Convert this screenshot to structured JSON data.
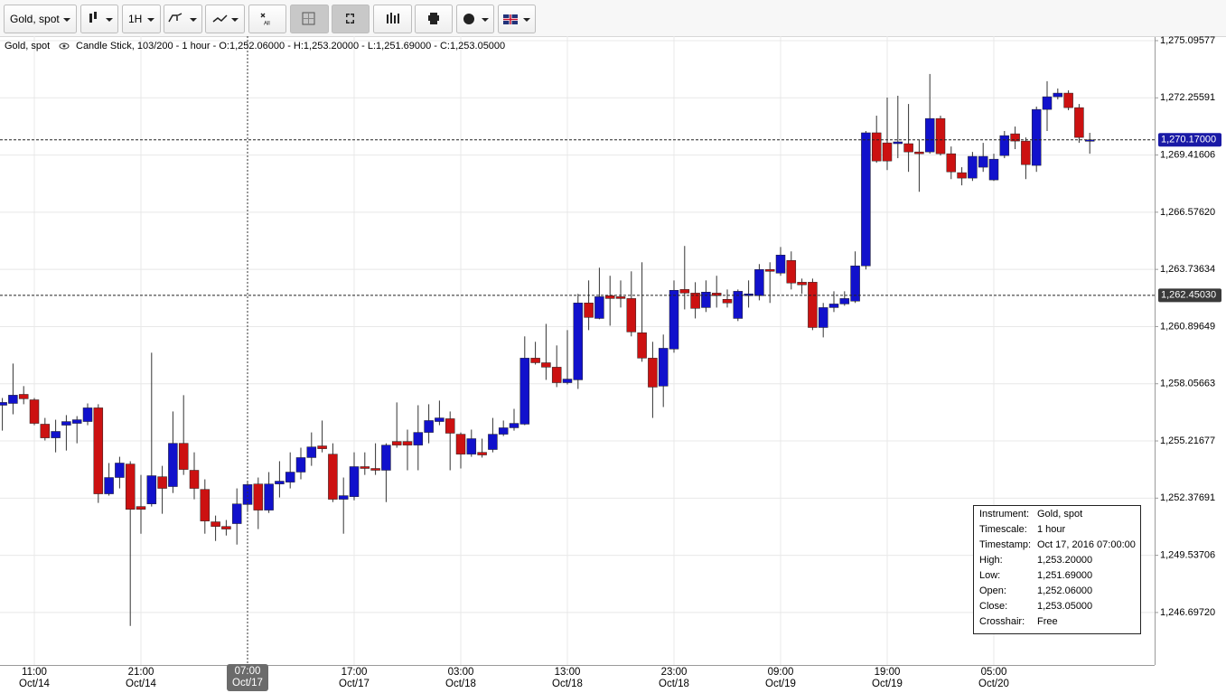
{
  "toolbar": {
    "symbol": "Gold, spot",
    "timeframe": "1H",
    "all": "All"
  },
  "header": {
    "symbol": "Gold, spot",
    "description": "Candle Stick, 103/200 - 1 hour - O:1,252.06000 - H:1,253.20000 - L:1,251.69000 - C:1,253.05000"
  },
  "info_box": {
    "rows": [
      [
        "Instrument:",
        "Gold, spot"
      ],
      [
        "Timescale:",
        "1 hour"
      ],
      [
        "Timestamp:",
        "Oct 17, 2016 07:00:00"
      ],
      [
        "High:",
        "1,253.20000"
      ],
      [
        "Low:",
        "1,251.69000"
      ],
      [
        "Open:",
        "1,252.06000"
      ],
      [
        "Close:",
        "1,253.05000"
      ],
      [
        "Crosshair:",
        "Free"
      ]
    ]
  },
  "chart_data": {
    "type": "candlestick",
    "up_color": "#1111cc",
    "down_color": "#cc1111",
    "wick_color": "#333333",
    "grid": true,
    "crosshair_index": 23,
    "categories": [
      null,
      null,
      null,
      "11:00\nOct/14",
      null,
      null,
      null,
      null,
      null,
      null,
      null,
      null,
      null,
      "21:00\nOct/14",
      null,
      null,
      null,
      null,
      null,
      null,
      null,
      null,
      null,
      "07:00\nOct/17",
      null,
      null,
      null,
      null,
      null,
      null,
      null,
      null,
      null,
      "17:00\nOct/17",
      null,
      null,
      null,
      null,
      null,
      null,
      null,
      null,
      null,
      "03:00\nOct/18",
      null,
      null,
      null,
      null,
      null,
      null,
      null,
      null,
      null,
      "13:00\nOct/18",
      null,
      null,
      null,
      null,
      null,
      null,
      null,
      null,
      null,
      "23:00\nOct/18",
      null,
      null,
      null,
      null,
      null,
      null,
      null,
      null,
      null,
      "09:00\nOct/19",
      null,
      null,
      null,
      null,
      null,
      null,
      null,
      null,
      null,
      "19:00\nOct/19",
      null,
      null,
      null,
      null,
      null,
      null,
      null,
      null,
      null,
      "05:00\nOct/20",
      null,
      null,
      null,
      null,
      null,
      null,
      null,
      null,
      null
    ],
    "open": [
      1256.99,
      1257.08,
      1257.53,
      1257.26,
      1256.05,
      1255.37,
      1256.0,
      1256.09,
      1256.18,
      1256.86,
      1252.59,
      1253.4,
      1254.07,
      1251.96,
      1252.09,
      1253.44,
      1252.95,
      1255.1,
      1253.76,
      1252.81,
      1251.2,
      1250.97,
      1251.11,
      1252.06,
      1253.08,
      1251.78,
      1253.08,
      1253.17,
      1253.67,
      1254.39,
      1254.97,
      1254.56,
      1252.32,
      1252.45,
      1253.94,
      1253.85,
      1253.76,
      1255.19,
      1255.19,
      1255.01,
      1255.64,
      1256.18,
      1256.32,
      1255.55,
      1254.56,
      1254.65,
      1254.79,
      1255.55,
      1255.87,
      1256.05,
      1259.33,
      1259.1,
      1258.88,
      1258.11,
      1258.25,
      1262.07,
      1261.3,
      1262.43,
      1262.38,
      1262.29,
      1260.59,
      1259.33,
      1257.94,
      1259.78,
      1262.74,
      1262.56,
      1261.84,
      1262.56,
      1262.25,
      1261.3,
      1262.43,
      1262.43,
      1263.73,
      1263.55,
      1264.18,
      1263.1,
      1263.1,
      1260.85,
      1261.84,
      1262.02,
      1262.16,
      1263.91,
      1270.52,
      1270.02,
      1269.98,
      1269.98,
      1269.57,
      1269.57,
      1271.23,
      1269.48,
      1268.54,
      1268.27,
      1268.81,
      1268.18,
      1269.39,
      1270.47,
      1270.11,
      1268.9,
      1271.68,
      1272.31,
      1272.49,
      1271.77,
      1270.1
    ],
    "high": [
      1257.35,
      1259.06,
      1257.94,
      1257.35,
      1256.36,
      1256.27,
      1256.5,
      1256.45,
      1257.08,
      1257.04,
      1254.12,
      1254.43,
      1254.21,
      1253.53,
      1259.6,
      1253.98,
      1256.68,
      1257.49,
      1254.65,
      1253.31,
      1251.51,
      1251.29,
      1252.86,
      1253.2,
      1253.4,
      1253.67,
      1254.21,
      1254.65,
      1254.88,
      1255.64,
      1256.23,
      1255.1,
      1253.4,
      1254.65,
      1254.65,
      1255.1,
      1255.1,
      1257.13,
      1255.78,
      1256.99,
      1257.04,
      1257.22,
      1256.68,
      1255.64,
      1255.78,
      1255.33,
      1256.36,
      1256.23,
      1256.81,
      1260.41,
      1260.14,
      1261.03,
      1259.96,
      1260.72,
      1262.52,
      1263.19,
      1263.82,
      1263.42,
      1263.19,
      1263.64,
      1264.09,
      1260.14,
      1260.5,
      1263.19,
      1264.9,
      1263.1,
      1263.19,
      1263.42,
      1262.74,
      1262.74,
      1263.19,
      1264.0,
      1264.09,
      1264.85,
      1264.63,
      1263.28,
      1263.28,
      1262.07,
      1262.65,
      1262.65,
      1264.63,
      1270.61,
      1271.37,
      1272.27,
      1272.36,
      1271.95,
      1270.16,
      1273.44,
      1271.37,
      1269.84,
      1268.81,
      1269.57,
      1270.02,
      1269.48,
      1270.61,
      1270.83,
      1270.29,
      1271.82,
      1273.08,
      1272.72,
      1272.63,
      1271.95,
      1270.52
    ],
    "low": [
      1255.73,
      1256.54,
      1257.04,
      1256.0,
      1255.24,
      1254.65,
      1254.74,
      1255.1,
      1256.0,
      1252.14,
      1252.5,
      1252.86,
      1246.03,
      1250.61,
      1251.96,
      1251.6,
      1252.63,
      1253.53,
      1252.32,
      1250.61,
      1250.25,
      1250.52,
      1250.07,
      1251.69,
      1250.84,
      1251.64,
      1252.41,
      1252.86,
      1253.31,
      1253.98,
      1254.65,
      1252.18,
      1250.61,
      1252.27,
      1253.53,
      1253.53,
      1252.18,
      1254.88,
      1253.76,
      1253.76,
      1255.1,
      1256.0,
      1253.76,
      1253.85,
      1254.43,
      1254.39,
      1254.65,
      1255.46,
      1255.73,
      1256.0,
      1259.01,
      1258.25,
      1257.89,
      1258.02,
      1257.8,
      1260.72,
      1261.26,
      1260.94,
      1261.84,
      1260.41,
      1259.15,
      1256.36,
      1256.9,
      1259.6,
      1261.75,
      1261.3,
      1261.62,
      1261.84,
      1261.84,
      1261.17,
      1261.84,
      1262.2,
      1262.07,
      1263.42,
      1262.74,
      1262.52,
      1260.72,
      1260.36,
      1261.62,
      1261.93,
      1262.07,
      1263.73,
      1269.03,
      1268.67,
      1269.26,
      1268.58,
      1267.59,
      1269.48,
      1269.39,
      1268.22,
      1267.91,
      1268.13,
      1268.58,
      1268.13,
      1269.26,
      1269.71,
      1268.22,
      1268.58,
      1270.61,
      1272.18,
      1271.64,
      1270.02,
      1269.48
    ],
    "close": [
      1257.13,
      1257.49,
      1257.31,
      1256.09,
      1255.37,
      1255.69,
      1256.18,
      1256.27,
      1256.86,
      1252.59,
      1253.4,
      1254.12,
      1251.82,
      1251.82,
      1253.49,
      1252.86,
      1255.1,
      1253.8,
      1252.86,
      1251.24,
      1250.97,
      1250.84,
      1252.09,
      1253.05,
      1251.78,
      1253.08,
      1253.22,
      1253.67,
      1254.39,
      1254.92,
      1254.83,
      1252.32,
      1252.5,
      1253.94,
      1253.85,
      1253.76,
      1255.01,
      1255.01,
      1255.01,
      1255.64,
      1256.23,
      1256.36,
      1255.6,
      1254.56,
      1255.33,
      1254.52,
      1255.55,
      1255.87,
      1256.09,
      1259.33,
      1259.1,
      1258.88,
      1258.11,
      1258.29,
      1262.07,
      1261.35,
      1262.38,
      1262.29,
      1262.29,
      1260.63,
      1259.33,
      1257.89,
      1259.82,
      1262.7,
      1262.56,
      1261.8,
      1262.61,
      1262.43,
      1262.07,
      1262.65,
      1262.52,
      1263.73,
      1263.64,
      1264.45,
      1263.06,
      1262.97,
      1260.85,
      1261.84,
      1262.02,
      1262.29,
      1263.91,
      1270.52,
      1269.12,
      1269.12,
      1270.07,
      1269.57,
      1269.48,
      1271.23,
      1269.48,
      1268.58,
      1268.27,
      1269.35,
      1269.35,
      1269.21,
      1270.38,
      1270.11,
      1268.94,
      1271.68,
      1272.31,
      1272.49,
      1271.77,
      1270.29,
      1270.17
    ],
    "ylim": [
      1244.09,
      1275.32
    ],
    "yticks": [
      {
        "value": 1275.09577,
        "label": "1,275.09577"
      },
      {
        "value": 1272.25591,
        "label": "1,272.25591"
      },
      {
        "value": 1269.41606,
        "label": "1,269.41606"
      },
      {
        "value": 1266.5762,
        "label": "1,266.57620"
      },
      {
        "value": 1263.73634,
        "label": "1,263.73634"
      },
      {
        "value": 1260.89649,
        "label": "1,260.89649"
      },
      {
        "value": 1258.05663,
        "label": "1,258.05663"
      },
      {
        "value": 1255.21677,
        "label": "1,255.21677"
      },
      {
        "value": 1252.37691,
        "label": "1,252.37691"
      },
      {
        "value": 1249.53706,
        "label": "1,249.53706"
      },
      {
        "value": 1246.6972,
        "label": "1,246.69720"
      }
    ],
    "price_lines": [
      {
        "value": 1270.17,
        "label": "1,270.17000",
        "color": "#1a1aa6"
      },
      {
        "value": 1262.4503,
        "label": "1,262.45030",
        "color": "#3a3a3a"
      }
    ]
  }
}
